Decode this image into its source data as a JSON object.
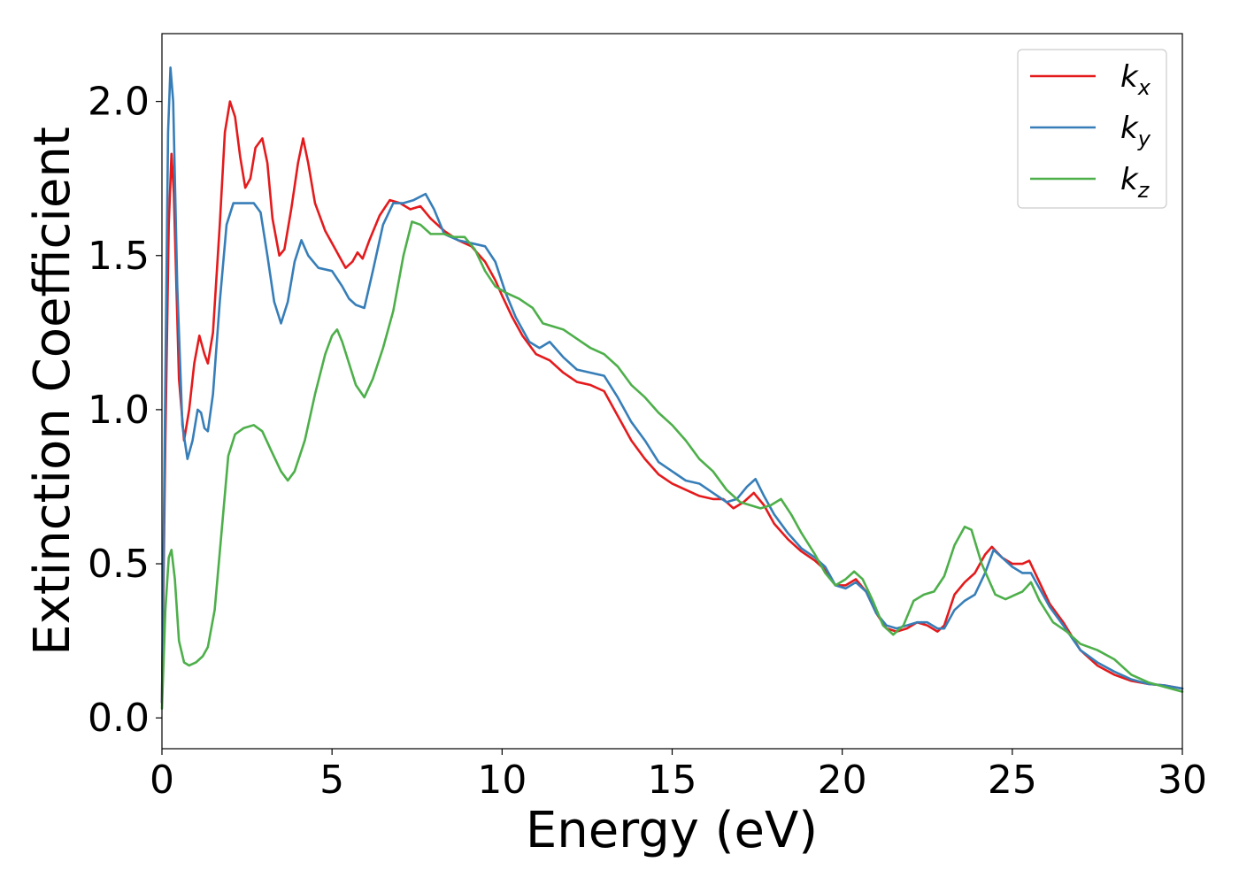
{
  "chart_data": {
    "type": "line",
    "title": "",
    "xlabel": "Energy (eV)",
    "ylabel": "Extinction Coefficient",
    "xlim": [
      0,
      30
    ],
    "ylim": [
      -0.1,
      2.22
    ],
    "xticks": [
      0,
      5,
      10,
      15,
      20,
      25,
      30
    ],
    "xtick_labels": [
      "0",
      "5",
      "10",
      "15",
      "20",
      "25",
      "30"
    ],
    "yticks": [
      0.0,
      0.5,
      1.0,
      1.5,
      2.0
    ],
    "ytick_labels": [
      "0.0",
      "0.5",
      "1.0",
      "1.5",
      "2.0"
    ],
    "grid": false,
    "legend_position": "top-right",
    "series": [
      {
        "name": "k",
        "subscript": "x",
        "color": "#e41a1c",
        "points": [
          [
            0,
            0.05
          ],
          [
            0.1,
            0.9
          ],
          [
            0.2,
            1.6
          ],
          [
            0.28,
            1.83
          ],
          [
            0.35,
            1.7
          ],
          [
            0.5,
            1.1
          ],
          [
            0.65,
            0.9
          ],
          [
            0.8,
            1.0
          ],
          [
            0.95,
            1.15
          ],
          [
            1.1,
            1.24
          ],
          [
            1.25,
            1.18
          ],
          [
            1.35,
            1.15
          ],
          [
            1.5,
            1.25
          ],
          [
            1.7,
            1.6
          ],
          [
            1.85,
            1.9
          ],
          [
            2.0,
            2.0
          ],
          [
            2.15,
            1.95
          ],
          [
            2.3,
            1.82
          ],
          [
            2.45,
            1.72
          ],
          [
            2.6,
            1.75
          ],
          [
            2.75,
            1.85
          ],
          [
            2.95,
            1.88
          ],
          [
            3.1,
            1.8
          ],
          [
            3.25,
            1.62
          ],
          [
            3.45,
            1.5
          ],
          [
            3.6,
            1.52
          ],
          [
            3.8,
            1.65
          ],
          [
            4.0,
            1.8
          ],
          [
            4.15,
            1.88
          ],
          [
            4.3,
            1.8
          ],
          [
            4.5,
            1.67
          ],
          [
            4.8,
            1.58
          ],
          [
            5.1,
            1.52
          ],
          [
            5.4,
            1.46
          ],
          [
            5.6,
            1.48
          ],
          [
            5.75,
            1.51
          ],
          [
            5.9,
            1.49
          ],
          [
            6.1,
            1.55
          ],
          [
            6.4,
            1.63
          ],
          [
            6.7,
            1.68
          ],
          [
            7.0,
            1.67
          ],
          [
            7.3,
            1.65
          ],
          [
            7.6,
            1.66
          ],
          [
            7.9,
            1.62
          ],
          [
            8.3,
            1.58
          ],
          [
            8.7,
            1.55
          ],
          [
            9.1,
            1.53
          ],
          [
            9.5,
            1.48
          ],
          [
            9.8,
            1.42
          ],
          [
            10.0,
            1.37
          ],
          [
            10.3,
            1.3
          ],
          [
            10.6,
            1.24
          ],
          [
            11.0,
            1.18
          ],
          [
            11.4,
            1.16
          ],
          [
            11.8,
            1.12
          ],
          [
            12.2,
            1.09
          ],
          [
            12.6,
            1.08
          ],
          [
            13.0,
            1.06
          ],
          [
            13.4,
            0.98
          ],
          [
            13.8,
            0.9
          ],
          [
            14.2,
            0.84
          ],
          [
            14.6,
            0.79
          ],
          [
            15.0,
            0.76
          ],
          [
            15.4,
            0.74
          ],
          [
            15.8,
            0.72
          ],
          [
            16.2,
            0.71
          ],
          [
            16.5,
            0.71
          ],
          [
            16.8,
            0.68
          ],
          [
            17.1,
            0.7
          ],
          [
            17.4,
            0.73
          ],
          [
            17.7,
            0.69
          ],
          [
            18.0,
            0.63
          ],
          [
            18.4,
            0.58
          ],
          [
            18.8,
            0.54
          ],
          [
            19.2,
            0.51
          ],
          [
            19.5,
            0.48
          ],
          [
            19.8,
            0.43
          ],
          [
            20.1,
            0.43
          ],
          [
            20.4,
            0.45
          ],
          [
            20.7,
            0.41
          ],
          [
            21.0,
            0.34
          ],
          [
            21.3,
            0.29
          ],
          [
            21.6,
            0.28
          ],
          [
            21.9,
            0.29
          ],
          [
            22.2,
            0.31
          ],
          [
            22.5,
            0.3
          ],
          [
            22.8,
            0.28
          ],
          [
            23.0,
            0.3
          ],
          [
            23.3,
            0.4
          ],
          [
            23.6,
            0.44
          ],
          [
            23.9,
            0.47
          ],
          [
            24.2,
            0.53
          ],
          [
            24.4,
            0.555
          ],
          [
            24.7,
            0.52
          ],
          [
            25.0,
            0.5
          ],
          [
            25.3,
            0.5
          ],
          [
            25.5,
            0.51
          ],
          [
            25.8,
            0.44
          ],
          [
            26.1,
            0.37
          ],
          [
            26.5,
            0.31
          ],
          [
            27.0,
            0.22
          ],
          [
            27.5,
            0.17
          ],
          [
            28.0,
            0.14
          ],
          [
            28.5,
            0.12
          ],
          [
            29.0,
            0.11
          ],
          [
            29.5,
            0.105
          ],
          [
            30.0,
            0.095
          ]
        ]
      },
      {
        "name": "k",
        "subscript": "y",
        "color": "#377eb8",
        "points": [
          [
            0,
            0.05
          ],
          [
            0.1,
            1.1
          ],
          [
            0.18,
            1.9
          ],
          [
            0.25,
            2.11
          ],
          [
            0.33,
            2.0
          ],
          [
            0.45,
            1.4
          ],
          [
            0.6,
            0.95
          ],
          [
            0.75,
            0.84
          ],
          [
            0.9,
            0.9
          ],
          [
            1.05,
            1.0
          ],
          [
            1.15,
            0.99
          ],
          [
            1.25,
            0.94
          ],
          [
            1.35,
            0.93
          ],
          [
            1.5,
            1.05
          ],
          [
            1.7,
            1.35
          ],
          [
            1.9,
            1.6
          ],
          [
            2.1,
            1.67
          ],
          [
            2.4,
            1.67
          ],
          [
            2.7,
            1.67
          ],
          [
            2.9,
            1.64
          ],
          [
            3.1,
            1.5
          ],
          [
            3.3,
            1.35
          ],
          [
            3.5,
            1.28
          ],
          [
            3.7,
            1.35
          ],
          [
            3.9,
            1.48
          ],
          [
            4.1,
            1.55
          ],
          [
            4.3,
            1.5
          ],
          [
            4.6,
            1.46
          ],
          [
            5.0,
            1.45
          ],
          [
            5.3,
            1.4
          ],
          [
            5.5,
            1.36
          ],
          [
            5.7,
            1.34
          ],
          [
            5.95,
            1.33
          ],
          [
            6.2,
            1.45
          ],
          [
            6.5,
            1.6
          ],
          [
            6.8,
            1.67
          ],
          [
            7.1,
            1.67
          ],
          [
            7.4,
            1.68
          ],
          [
            7.75,
            1.7
          ],
          [
            8.0,
            1.65
          ],
          [
            8.3,
            1.57
          ],
          [
            8.7,
            1.55
          ],
          [
            9.1,
            1.54
          ],
          [
            9.5,
            1.53
          ],
          [
            9.8,
            1.48
          ],
          [
            10.1,
            1.38
          ],
          [
            10.4,
            1.3
          ],
          [
            10.8,
            1.22
          ],
          [
            11.1,
            1.2
          ],
          [
            11.4,
            1.22
          ],
          [
            11.8,
            1.17
          ],
          [
            12.2,
            1.13
          ],
          [
            12.6,
            1.12
          ],
          [
            13.0,
            1.11
          ],
          [
            13.4,
            1.04
          ],
          [
            13.8,
            0.96
          ],
          [
            14.2,
            0.9
          ],
          [
            14.6,
            0.83
          ],
          [
            15.0,
            0.8
          ],
          [
            15.4,
            0.77
          ],
          [
            15.8,
            0.76
          ],
          [
            16.2,
            0.73
          ],
          [
            16.6,
            0.7
          ],
          [
            16.9,
            0.71
          ],
          [
            17.2,
            0.75
          ],
          [
            17.45,
            0.775
          ],
          [
            17.7,
            0.72
          ],
          [
            18.0,
            0.66
          ],
          [
            18.4,
            0.6
          ],
          [
            18.8,
            0.55
          ],
          [
            19.2,
            0.52
          ],
          [
            19.5,
            0.49
          ],
          [
            19.8,
            0.43
          ],
          [
            20.1,
            0.42
          ],
          [
            20.4,
            0.44
          ],
          [
            20.7,
            0.41
          ],
          [
            21.0,
            0.34
          ],
          [
            21.3,
            0.3
          ],
          [
            21.6,
            0.29
          ],
          [
            21.9,
            0.3
          ],
          [
            22.2,
            0.31
          ],
          [
            22.5,
            0.31
          ],
          [
            22.8,
            0.29
          ],
          [
            23.0,
            0.29
          ],
          [
            23.3,
            0.35
          ],
          [
            23.6,
            0.38
          ],
          [
            23.9,
            0.4
          ],
          [
            24.2,
            0.47
          ],
          [
            24.45,
            0.545
          ],
          [
            24.7,
            0.52
          ],
          [
            25.0,
            0.49
          ],
          [
            25.3,
            0.47
          ],
          [
            25.55,
            0.47
          ],
          [
            25.8,
            0.42
          ],
          [
            26.1,
            0.36
          ],
          [
            26.5,
            0.3
          ],
          [
            27.0,
            0.22
          ],
          [
            27.5,
            0.18
          ],
          [
            28.0,
            0.15
          ],
          [
            28.5,
            0.125
          ],
          [
            29.0,
            0.11
          ],
          [
            29.5,
            0.105
          ],
          [
            30.0,
            0.095
          ]
        ]
      },
      {
        "name": "k",
        "subscript": "z",
        "color": "#4daf4a",
        "points": [
          [
            0,
            0.03
          ],
          [
            0.1,
            0.35
          ],
          [
            0.2,
            0.52
          ],
          [
            0.28,
            0.545
          ],
          [
            0.38,
            0.45
          ],
          [
            0.5,
            0.25
          ],
          [
            0.65,
            0.18
          ],
          [
            0.8,
            0.17
          ],
          [
            1.0,
            0.18
          ],
          [
            1.2,
            0.2
          ],
          [
            1.35,
            0.23
          ],
          [
            1.55,
            0.35
          ],
          [
            1.75,
            0.6
          ],
          [
            1.95,
            0.85
          ],
          [
            2.15,
            0.92
          ],
          [
            2.4,
            0.94
          ],
          [
            2.7,
            0.95
          ],
          [
            2.95,
            0.93
          ],
          [
            3.2,
            0.87
          ],
          [
            3.5,
            0.8
          ],
          [
            3.7,
            0.77
          ],
          [
            3.9,
            0.8
          ],
          [
            4.2,
            0.9
          ],
          [
            4.5,
            1.05
          ],
          [
            4.8,
            1.18
          ],
          [
            5.0,
            1.24
          ],
          [
            5.15,
            1.26
          ],
          [
            5.3,
            1.22
          ],
          [
            5.5,
            1.15
          ],
          [
            5.7,
            1.08
          ],
          [
            5.95,
            1.04
          ],
          [
            6.2,
            1.1
          ],
          [
            6.5,
            1.2
          ],
          [
            6.8,
            1.32
          ],
          [
            7.1,
            1.5
          ],
          [
            7.35,
            1.61
          ],
          [
            7.6,
            1.6
          ],
          [
            7.9,
            1.57
          ],
          [
            8.3,
            1.57
          ],
          [
            8.6,
            1.56
          ],
          [
            8.9,
            1.56
          ],
          [
            9.2,
            1.52
          ],
          [
            9.5,
            1.45
          ],
          [
            9.8,
            1.4
          ],
          [
            10.1,
            1.38
          ],
          [
            10.5,
            1.36
          ],
          [
            10.9,
            1.33
          ],
          [
            11.2,
            1.28
          ],
          [
            11.5,
            1.27
          ],
          [
            11.8,
            1.26
          ],
          [
            12.2,
            1.23
          ],
          [
            12.6,
            1.2
          ],
          [
            13.0,
            1.18
          ],
          [
            13.4,
            1.14
          ],
          [
            13.8,
            1.08
          ],
          [
            14.2,
            1.04
          ],
          [
            14.6,
            0.99
          ],
          [
            15.0,
            0.95
          ],
          [
            15.4,
            0.9
          ],
          [
            15.8,
            0.84
          ],
          [
            16.2,
            0.8
          ],
          [
            16.6,
            0.74
          ],
          [
            17.0,
            0.7
          ],
          [
            17.3,
            0.69
          ],
          [
            17.6,
            0.68
          ],
          [
            17.9,
            0.69
          ],
          [
            18.2,
            0.71
          ],
          [
            18.5,
            0.66
          ],
          [
            18.8,
            0.6
          ],
          [
            19.2,
            0.53
          ],
          [
            19.5,
            0.47
          ],
          [
            19.8,
            0.43
          ],
          [
            20.1,
            0.45
          ],
          [
            20.35,
            0.475
          ],
          [
            20.6,
            0.45
          ],
          [
            20.9,
            0.38
          ],
          [
            21.2,
            0.3
          ],
          [
            21.5,
            0.27
          ],
          [
            21.8,
            0.3
          ],
          [
            22.1,
            0.38
          ],
          [
            22.4,
            0.4
          ],
          [
            22.7,
            0.41
          ],
          [
            23.0,
            0.46
          ],
          [
            23.3,
            0.56
          ],
          [
            23.6,
            0.62
          ],
          [
            23.8,
            0.61
          ],
          [
            24.1,
            0.5
          ],
          [
            24.5,
            0.4
          ],
          [
            24.8,
            0.385
          ],
          [
            25.1,
            0.4
          ],
          [
            25.3,
            0.41
          ],
          [
            25.55,
            0.44
          ],
          [
            25.8,
            0.38
          ],
          [
            26.2,
            0.31
          ],
          [
            26.6,
            0.28
          ],
          [
            27.0,
            0.24
          ],
          [
            27.5,
            0.22
          ],
          [
            28.0,
            0.19
          ],
          [
            28.5,
            0.14
          ],
          [
            29.0,
            0.115
          ],
          [
            29.5,
            0.1
          ],
          [
            30.0,
            0.085
          ]
        ]
      }
    ]
  }
}
